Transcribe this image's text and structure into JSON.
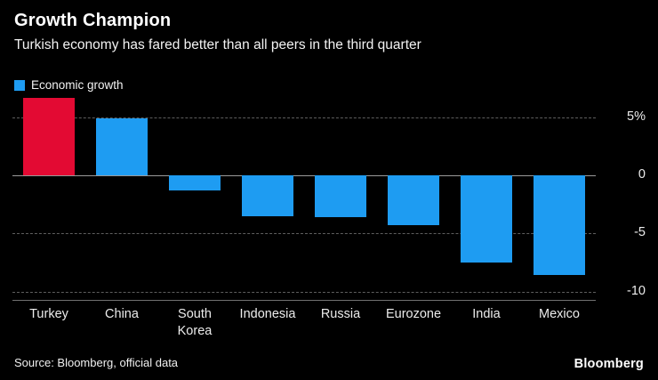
{
  "header": {
    "title": "Growth Champion",
    "subtitle": "Turkish economy has fared better than all peers in the third quarter"
  },
  "legend": {
    "label": "Economic growth"
  },
  "footer": {
    "source": "Source: Bloomberg, official data",
    "brand": "Bloomberg"
  },
  "chart_data": {
    "type": "bar",
    "title": "Growth Champion",
    "subtitle": "Turkish economy has fared better than all peers in the third quarter",
    "series_name": "Economic growth",
    "categories": [
      "Turkey",
      "China",
      "South Korea",
      "Indonesia",
      "Russia",
      "Eurozone",
      "India",
      "Mexico"
    ],
    "values": [
      6.7,
      4.9,
      -1.3,
      -3.5,
      -3.6,
      -4.3,
      -7.5,
      -8.6
    ],
    "units": "%",
    "series_color": "#1e9cf2",
    "highlight_index": 0,
    "highlight_color": "#e30a33",
    "yticks": [
      5,
      0,
      -5,
      -10
    ],
    "ytick_labels": [
      "5%",
      "0",
      "-5",
      "-10"
    ],
    "ylim": [
      -10.8,
      6.7
    ],
    "grid": "dashed-horizontal",
    "legend_position": "top-left",
    "background": "#000000"
  }
}
